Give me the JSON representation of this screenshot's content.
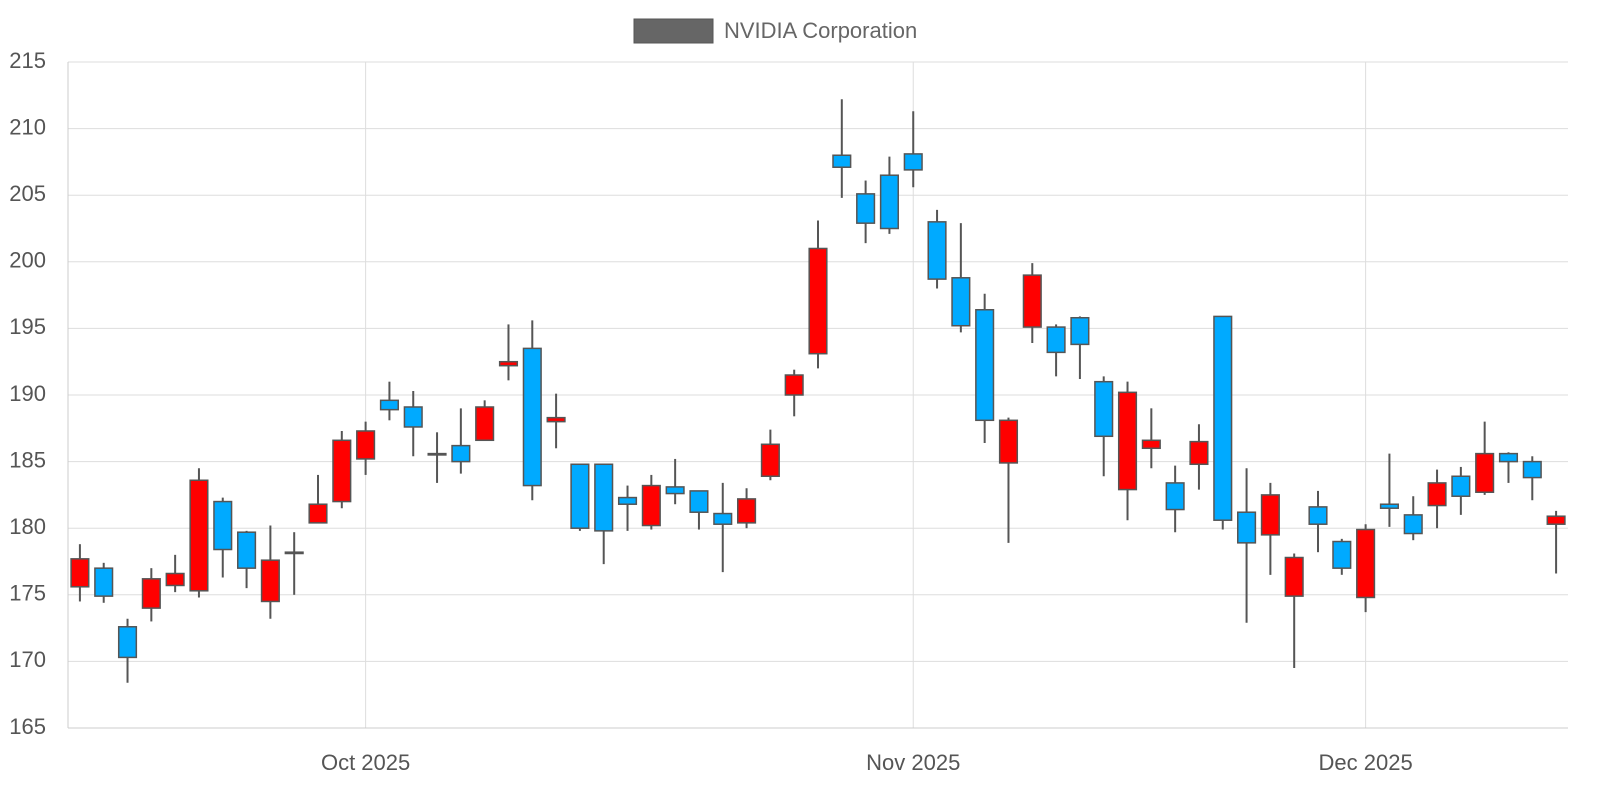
{
  "chart_data": {
    "type": "candlestick",
    "categories": [
      null,
      null,
      null,
      null,
      null,
      null,
      null,
      null,
      null,
      null,
      null,
      null,
      "Oct 2025",
      null,
      null,
      null,
      null,
      null,
      null,
      null,
      null,
      null,
      null,
      null,
      null,
      null,
      null,
      null,
      null,
      null,
      null,
      null,
      null,
      null,
      null,
      "Nov 2025",
      null,
      null,
      null,
      null,
      null,
      null,
      null,
      null,
      null,
      null,
      null,
      null,
      null,
      null,
      null,
      null,
      null,
      null,
      "Dec 2025",
      null,
      null,
      null,
      null,
      null,
      null,
      null,
      null
    ],
    "series": [
      {
        "name": "NVIDIA Corporation",
        "color": "#666666",
        "open": [
          175.6,
          177.0,
          172.6,
          174.0,
          175.7,
          175.3,
          182.0,
          179.7,
          174.5,
          178.1,
          180.4,
          182.0,
          185.2,
          189.6,
          189.1,
          185.6,
          186.2,
          186.6,
          192.2,
          193.5,
          188.0,
          184.8,
          184.8,
          182.3,
          180.2,
          183.1,
          182.8,
          181.1,
          180.4,
          183.9,
          190.0,
          193.1,
          208.0,
          205.1,
          206.5,
          208.1,
          203.0,
          198.8,
          196.4,
          184.9,
          195.1,
          195.1,
          195.8,
          191.0,
          182.9,
          186.0,
          183.4,
          184.8,
          195.9,
          181.2,
          179.5,
          174.9,
          181.6,
          179.0,
          174.8,
          181.8,
          181.0,
          181.7,
          183.9,
          182.7,
          185.6,
          185.0,
          180.3
        ],
        "high": [
          178.8,
          177.4,
          173.2,
          177.0,
          178.0,
          184.5,
          182.3,
          179.8,
          180.2,
          179.7,
          184.0,
          187.3,
          188.0,
          191.0,
          190.3,
          187.2,
          189.0,
          189.6,
          195.3,
          195.6,
          190.1,
          184.8,
          184.8,
          183.2,
          184.0,
          185.2,
          182.8,
          183.4,
          183.0,
          187.4,
          191.9,
          203.1,
          212.2,
          206.1,
          207.9,
          211.3,
          203.9,
          202.9,
          197.6,
          188.3,
          199.9,
          195.3,
          195.9,
          191.4,
          191.0,
          189.0,
          184.7,
          187.8,
          195.9,
          184.5,
          183.4,
          178.1,
          182.8,
          179.2,
          180.3,
          185.6,
          182.4,
          184.4,
          184.6,
          188.0,
          185.7,
          185.4,
          181.3
        ],
        "low": [
          174.5,
          174.4,
          168.4,
          173.0,
          175.2,
          174.8,
          176.3,
          175.5,
          173.2,
          175.0,
          180.4,
          181.5,
          184.0,
          188.1,
          185.4,
          183.4,
          184.1,
          186.6,
          191.1,
          182.1,
          186.0,
          179.8,
          177.3,
          179.8,
          179.9,
          181.8,
          179.9,
          176.7,
          180.0,
          183.6,
          188.4,
          192.0,
          204.8,
          201.4,
          202.1,
          205.6,
          198.0,
          194.7,
          186.4,
          178.9,
          193.9,
          191.4,
          191.2,
          183.9,
          180.6,
          184.5,
          179.7,
          182.9,
          179.9,
          172.9,
          176.5,
          169.5,
          178.2,
          176.5,
          173.7,
          180.1,
          179.1,
          180.0,
          181.0,
          182.5,
          183.4,
          182.1,
          176.6
        ],
        "close": [
          177.7,
          174.9,
          170.3,
          176.2,
          176.6,
          183.6,
          178.4,
          177.0,
          177.6,
          178.2,
          181.8,
          186.6,
          187.3,
          188.9,
          187.6,
          185.5,
          185.0,
          189.1,
          192.5,
          183.2,
          188.3,
          180.0,
          179.8,
          181.8,
          183.2,
          182.6,
          181.2,
          180.3,
          182.2,
          186.3,
          191.5,
          201.0,
          207.1,
          202.9,
          202.5,
          206.9,
          198.7,
          195.2,
          188.1,
          188.1,
          199.0,
          193.2,
          193.8,
          186.9,
          190.2,
          186.6,
          181.4,
          186.5,
          180.6,
          178.9,
          182.5,
          177.8,
          180.3,
          177.0,
          179.9,
          181.5,
          179.6,
          183.4,
          182.4,
          185.6,
          185.0,
          183.8,
          180.9
        ]
      }
    ],
    "increasing_color": "#ff0000",
    "decreasing_color": "#00aaff",
    "ylim": [
      165,
      215
    ],
    "yticks": [
      165,
      170,
      175,
      180,
      185,
      190,
      195,
      200,
      205,
      210,
      215
    ],
    "grid": true
  }
}
